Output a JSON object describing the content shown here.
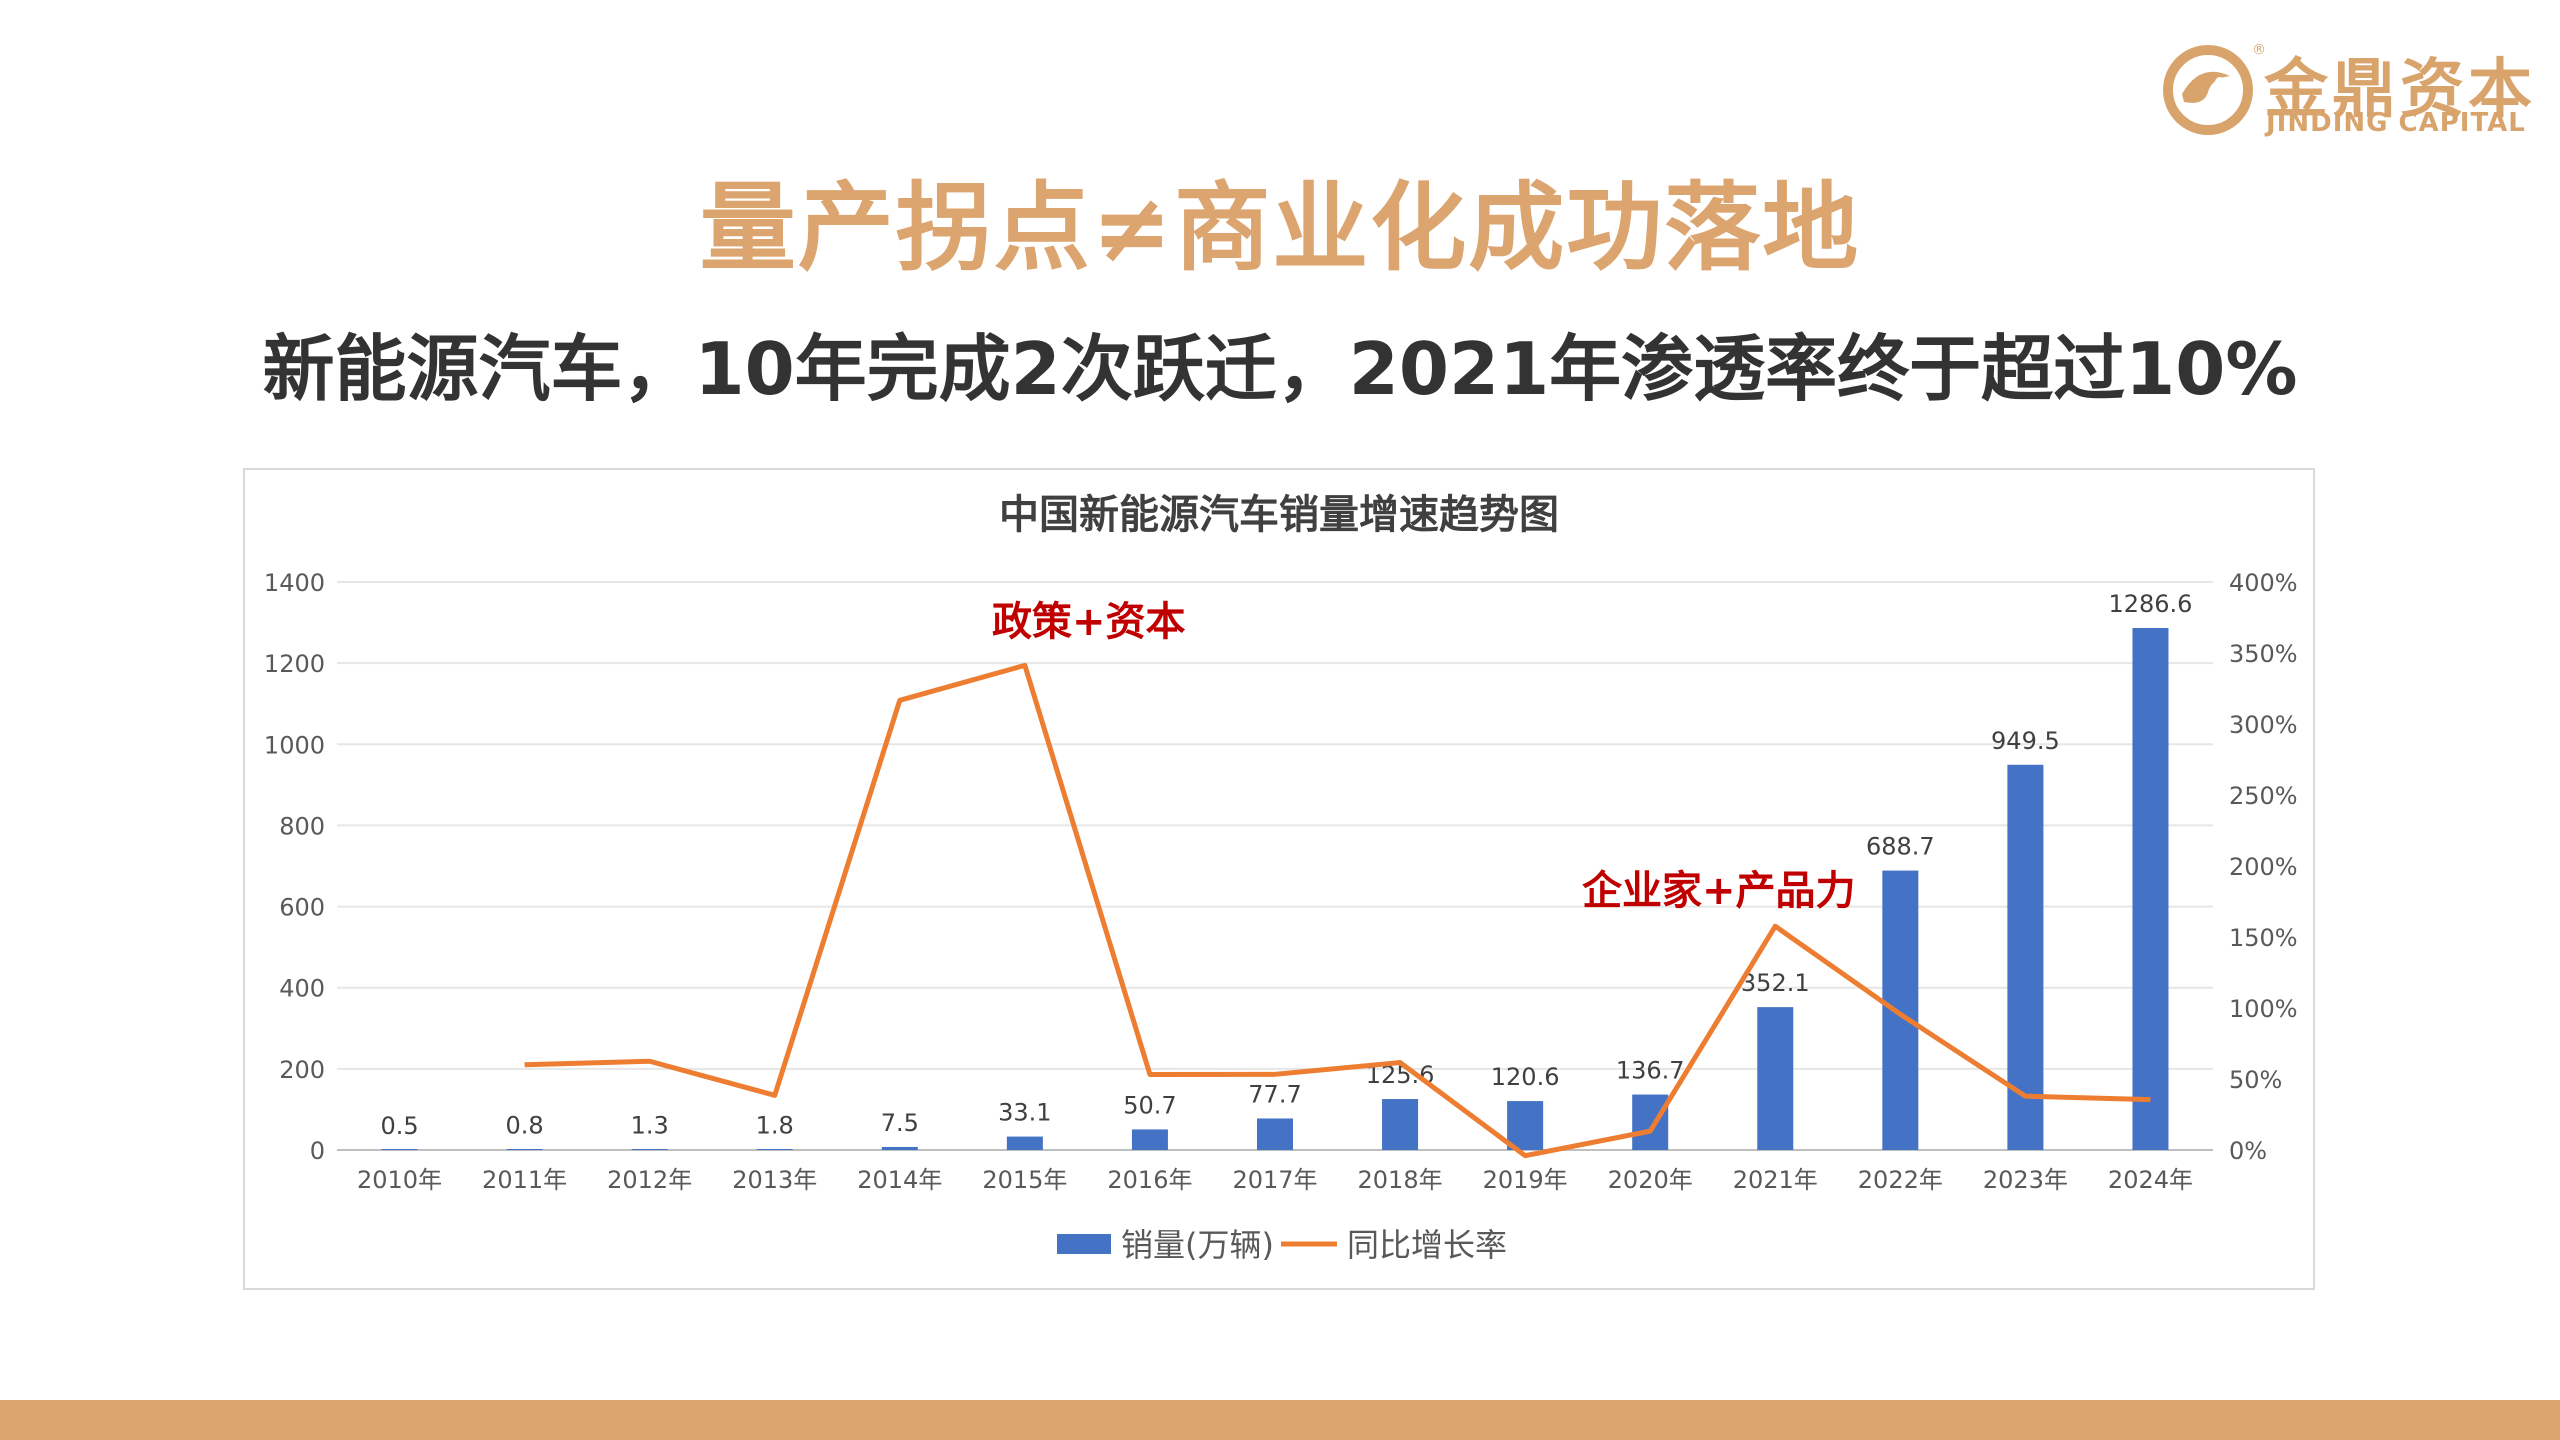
{
  "brand": {
    "name_cn": "金鼎资本",
    "name_en": "JINDING CAPITAL",
    "registered_mark": "®",
    "color": "#d9a46c"
  },
  "slide": {
    "title": "量产拐点≠商业化成功落地",
    "subtitle": "新能源汽车，10年完成2次跃迁，2021年渗透率终于超过10%",
    "title_color": "#dca46e",
    "accent_bar_color": "#dca46e"
  },
  "annotations": [
    {
      "text": "政策+资本",
      "color": "#c00000"
    },
    {
      "text": "企业家+产品力",
      "color": "#c00000"
    }
  ],
  "chart_data": {
    "type": "bar",
    "title": "中国新能源汽车销量增速趋势图",
    "categories": [
      "2010年",
      "2011年",
      "2012年",
      "2013年",
      "2014年",
      "2015年",
      "2016年",
      "2017年",
      "2018年",
      "2019年",
      "2020年",
      "2021年",
      "2022年",
      "2023年",
      "2024年"
    ],
    "series": [
      {
        "name": "销量(万辆)",
        "type": "bar",
        "axis": "left",
        "color": "#4472c4",
        "values": [
          0.5,
          0.8,
          1.3,
          1.8,
          7.5,
          33.1,
          50.7,
          77.7,
          125.6,
          120.6,
          136.7,
          352.1,
          688.7,
          949.5,
          1286.6
        ],
        "labels": [
          "0.5",
          "0.8",
          "1.3",
          "1.8",
          "7.5",
          "33.1",
          "50.7",
          "77.7",
          "125.6",
          "120.6",
          "136.7",
          "352.1",
          "688.7",
          "949.5",
          "1286.6"
        ]
      },
      {
        "name": "同比增长率",
        "type": "line",
        "axis": "right",
        "color": "#ed7d31",
        "values": [
          null,
          60,
          62.5,
          38.5,
          316.7,
          341.3,
          53.2,
          53.3,
          61.6,
          -4.0,
          13.3,
          157.6,
          95.6,
          37.9,
          35.5
        ]
      }
    ],
    "y_left": {
      "min": 0,
      "max": 1400,
      "ticks": [
        0,
        200,
        400,
        600,
        800,
        1000,
        1200,
        1400
      ]
    },
    "y_right": {
      "min": 0,
      "max": 400,
      "ticks": [
        "0%",
        "50%",
        "100%",
        "150%",
        "200%",
        "250%",
        "300%",
        "350%",
        "400%"
      ]
    },
    "grid": true,
    "legend": "bottom"
  }
}
